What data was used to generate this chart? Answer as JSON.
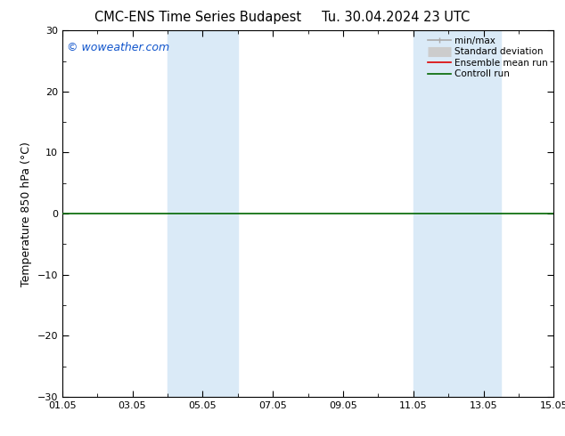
{
  "title": "CMC-ENS Time Series Budapest",
  "title2": "Tu. 30.04.2024 23 UTC",
  "ylabel": "Temperature 850 hPa (°C)",
  "watermark": "© woweather.com",
  "xlim": [
    0,
    14
  ],
  "ylim": [
    -30,
    30
  ],
  "yticks": [
    -30,
    -20,
    -10,
    0,
    10,
    20,
    30
  ],
  "xtick_positions": [
    0,
    2,
    4,
    6,
    8,
    10,
    12,
    14
  ],
  "xtick_labels": [
    "01.05",
    "03.05",
    "05.05",
    "07.05",
    "09.05",
    "11.05",
    "13.05",
    "15.05"
  ],
  "shaded_bands": [
    {
      "x_start": 3.0,
      "x_end": 5.0
    },
    {
      "x_start": 10.0,
      "x_end": 12.5
    }
  ],
  "band_color": "#daeaf7",
  "background_color": "#ffffff",
  "plot_bg_color": "#ffffff",
  "green_line_y": 0,
  "green_line_color": "#006600",
  "green_line_lw": 1.2,
  "legend_entries": [
    {
      "label": "min/max",
      "color": "#aaaaaa",
      "lw": 1.2
    },
    {
      "label": "Standard deviation",
      "color": "#cccccc",
      "lw": 8
    },
    {
      "label": "Ensemble mean run",
      "color": "#dd0000",
      "lw": 1.2
    },
    {
      "label": "Controll run",
      "color": "#006600",
      "lw": 1.2
    }
  ],
  "title_fontsize": 10.5,
  "tick_fontsize": 8,
  "ylabel_fontsize": 9,
  "watermark_fontsize": 9,
  "watermark_color": "#1155cc"
}
